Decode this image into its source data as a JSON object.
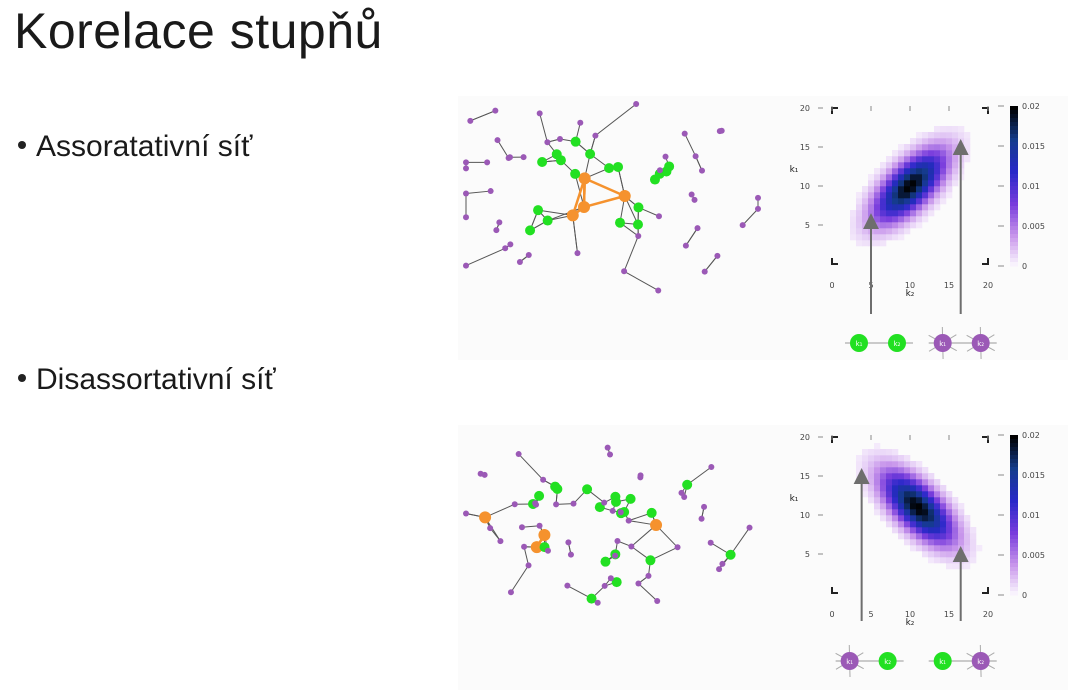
{
  "title": "Korelace stupňů",
  "bullets": [
    "Assoratativní síť",
    "Disassortativní síť"
  ],
  "colors": {
    "node_high": "#f5922e",
    "node_mid": "#22e022",
    "node_low": "#9b59b6",
    "edge": "#555555",
    "arrow": "#6e6e6e"
  },
  "heatmap": {
    "y_label": "k₁",
    "x_label": "k₂",
    "y_ticks": [
      "20",
      "15",
      "10",
      "5"
    ],
    "x_ticks": [
      "0",
      "5",
      "10",
      "15",
      "20"
    ],
    "colorbar_ticks": [
      "0.02",
      "0.015",
      "0.01",
      "0.005",
      "0"
    ]
  },
  "chart_data": [
    {
      "type": "heatmap",
      "name_hint": "assortative",
      "xlabel": "k₂",
      "ylabel": "k₁",
      "xlim": [
        0,
        20
      ],
      "ylim": [
        0,
        20
      ],
      "colorbar_range": [
        0,
        0.02
      ],
      "correlation": "positive",
      "peak": {
        "x": 10,
        "y": 10,
        "value": 0.02
      }
    },
    {
      "type": "heatmap",
      "name_hint": "disassortative",
      "xlabel": "k₂",
      "ylabel": "k₁",
      "xlim": [
        0,
        20
      ],
      "ylim": [
        0,
        20
      ],
      "colorbar_range": [
        0,
        0.02
      ],
      "correlation": "negative",
      "peak": {
        "x": 11,
        "y": 11,
        "value": 0.02
      }
    }
  ],
  "legend_pairs": {
    "assortative": [
      {
        "left": "k₁",
        "right": "k₂",
        "kind": "low"
      },
      {
        "left": "k₁",
        "right": "k₂",
        "kind": "high"
      }
    ],
    "disassortative": [
      {
        "left": "k₁",
        "right": "k₂",
        "kind": "mixed-hl"
      },
      {
        "left": "k₁",
        "right": "k₂",
        "kind": "mixed-lh"
      }
    ]
  }
}
